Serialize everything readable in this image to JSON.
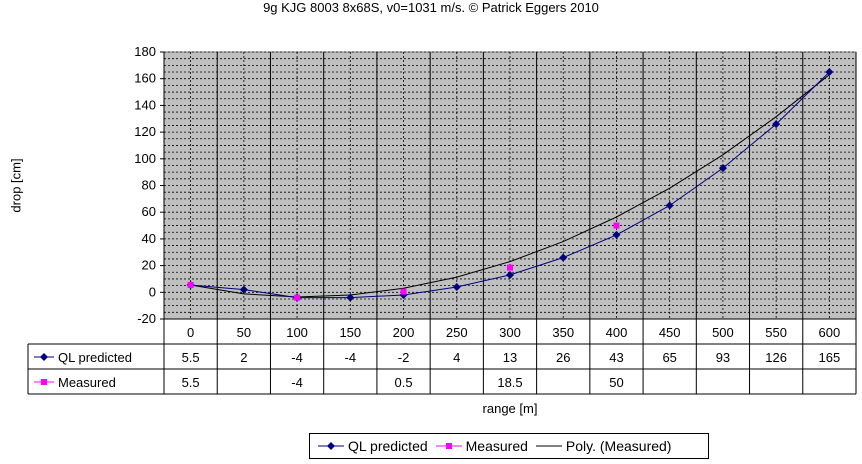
{
  "chart_data": {
    "type": "line",
    "title": "9g KJG 8003 8x68S, v0=1031 m/s. © Patrick Eggers 2010",
    "xlabel": "range [m]",
    "ylabel": "drop [cm]",
    "ylim": [
      -20,
      180
    ],
    "yticks": [
      "180",
      "160",
      "140",
      "120",
      "100",
      "80",
      "60",
      "40",
      "20",
      "0",
      "-20"
    ],
    "categories": [
      "0",
      "50",
      "100",
      "150",
      "200",
      "250",
      "300",
      "350",
      "400",
      "450",
      "500",
      "550",
      "600"
    ],
    "grid": true,
    "legend_position": "bottom",
    "series": [
      {
        "name": "QL predicted",
        "marker": "diamond",
        "color": "#000080",
        "values": [
          5.5,
          2,
          -4,
          -4,
          -2,
          4,
          13,
          26,
          43,
          65,
          93,
          126,
          165
        ]
      },
      {
        "name": "Measured",
        "marker": "square",
        "color": "#ff00ff",
        "values": [
          5.5,
          null,
          -4,
          null,
          0.5,
          null,
          18.5,
          null,
          50,
          null,
          null,
          null,
          null
        ]
      },
      {
        "name": "Poly. (Measured)",
        "marker": "none",
        "color": "#000000",
        "values": [
          5.5,
          -1.2,
          -3.5,
          -2.0,
          3.1,
          11.4,
          23.0,
          38.0,
          56.4,
          78.0,
          103.0,
          131.5,
          163.0
        ]
      }
    ],
    "table_rows": [
      {
        "label": "QL predicted",
        "cells": [
          "5.5",
          "2",
          "-4",
          "-4",
          "-2",
          "4",
          "13",
          "26",
          "43",
          "65",
          "93",
          "126",
          "165"
        ]
      },
      {
        "label": "Measured",
        "cells": [
          "5.5",
          "",
          "-4",
          "",
          "0.5",
          "",
          "18.5",
          "",
          "50",
          "",
          "",
          "",
          ""
        ]
      }
    ],
    "legend_entries": [
      "QL predicted",
      "Measured",
      "Poly. (Measured)"
    ]
  }
}
